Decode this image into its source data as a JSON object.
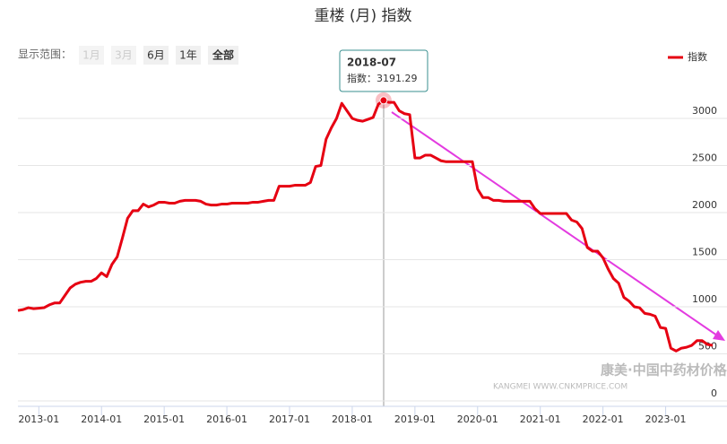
{
  "chart_data": {
    "type": "line",
    "title": "重楼 (月) 指数",
    "range_label": "显示范围：",
    "range_buttons": [
      "1月",
      "3月",
      "6月",
      "1年",
      "全部"
    ],
    "categories": [
      "2012-09",
      "2012-10",
      "2012-11",
      "2012-12",
      "2013-01",
      "2013-02",
      "2013-03",
      "2013-04",
      "2013-05",
      "2013-06",
      "2013-07",
      "2013-08",
      "2013-09",
      "2013-10",
      "2013-11",
      "2013-12",
      "2014-01",
      "2014-02",
      "2014-03",
      "2014-04",
      "2014-05",
      "2014-06",
      "2014-07",
      "2014-08",
      "2014-09",
      "2014-10",
      "2014-11",
      "2014-12",
      "2015-01",
      "2015-02",
      "2015-03",
      "2015-04",
      "2015-05",
      "2015-06",
      "2015-07",
      "2015-08",
      "2015-09",
      "2015-10",
      "2015-11",
      "2015-12",
      "2016-01",
      "2016-02",
      "2016-03",
      "2016-04",
      "2016-05",
      "2016-06",
      "2016-07",
      "2016-08",
      "2016-09",
      "2016-10",
      "2016-11",
      "2016-12",
      "2017-01",
      "2017-02",
      "2017-03",
      "2017-04",
      "2017-05",
      "2017-06",
      "2017-07",
      "2017-08",
      "2017-09",
      "2017-10",
      "2017-11",
      "2017-12",
      "2018-01",
      "2018-02",
      "2018-03",
      "2018-04",
      "2018-05",
      "2018-06",
      "2018-07",
      "2018-08",
      "2018-09",
      "2018-10",
      "2018-11",
      "2018-12",
      "2019-01",
      "2019-02",
      "2019-03",
      "2019-04",
      "2019-05",
      "2019-06",
      "2019-07",
      "2019-08",
      "2019-09",
      "2019-10",
      "2019-11",
      "2019-12",
      "2020-01",
      "2020-02",
      "2020-03",
      "2020-04",
      "2020-05",
      "2020-06",
      "2020-07",
      "2020-08",
      "2020-09",
      "2020-10",
      "2020-11",
      "2020-12",
      "2021-01",
      "2021-02",
      "2021-03",
      "2021-04",
      "2021-05",
      "2021-06",
      "2021-07",
      "2021-08",
      "2021-09",
      "2021-10",
      "2021-11",
      "2021-12",
      "2022-01",
      "2022-02",
      "2022-03",
      "2022-04",
      "2022-05",
      "2022-06",
      "2022-07",
      "2022-08",
      "2022-09",
      "2022-10",
      "2022-11",
      "2022-12",
      "2023-01",
      "2023-02",
      "2023-03",
      "2023-04",
      "2023-05",
      "2023-06",
      "2023-07",
      "2023-08",
      "2023-09",
      "2023-10"
    ],
    "series": [
      {
        "name": "指数",
        "color": "#e60012",
        "values": [
          960,
          970,
          990,
          980,
          985,
          990,
          1020,
          1040,
          1040,
          1120,
          1200,
          1240,
          1260,
          1270,
          1270,
          1300,
          1360,
          1320,
          1450,
          1530,
          1730,
          1940,
          2020,
          2020,
          2090,
          2060,
          2080,
          2110,
          2110,
          2100,
          2100,
          2120,
          2130,
          2130,
          2130,
          2120,
          2090,
          2080,
          2080,
          2090,
          2090,
          2100,
          2100,
          2100,
          2100,
          2110,
          2110,
          2120,
          2130,
          2130,
          2280,
          2280,
          2280,
          2290,
          2290,
          2290,
          2320,
          2490,
          2500,
          2780,
          2900,
          3000,
          3160,
          3080,
          3000,
          2980,
          2970,
          2990,
          3010,
          3150,
          3191.29,
          3170,
          3170,
          3080,
          3050,
          3040,
          2580,
          2580,
          2610,
          2610,
          2580,
          2550,
          2540,
          2540,
          2540,
          2540,
          2540,
          2540,
          2250,
          2160,
          2160,
          2130,
          2130,
          2120,
          2120,
          2120,
          2120,
          2120,
          2120,
          2040,
          1990,
          1990,
          1990,
          1990,
          1990,
          1990,
          1920,
          1900,
          1830,
          1630,
          1590,
          1590,
          1520,
          1400,
          1300,
          1250,
          1100,
          1060,
          1000,
          990,
          930,
          920,
          900,
          780,
          770,
          560,
          530,
          560,
          570,
          590,
          640,
          640,
          600,
          590
        ]
      }
    ],
    "ylim": [
      0,
      3400
    ],
    "yticks": [
      0,
      500,
      1000,
      1500,
      2000,
      2500,
      3000
    ],
    "grid": true,
    "legend": "top-right",
    "tooltip": {
      "title": "2018-07",
      "text": "指数：3191.29",
      "index": 70
    },
    "watermark": [
      "康美·中国中药材价格指数",
      "KANGMEI WWW.CNKMPRICE.COM"
    ]
  }
}
